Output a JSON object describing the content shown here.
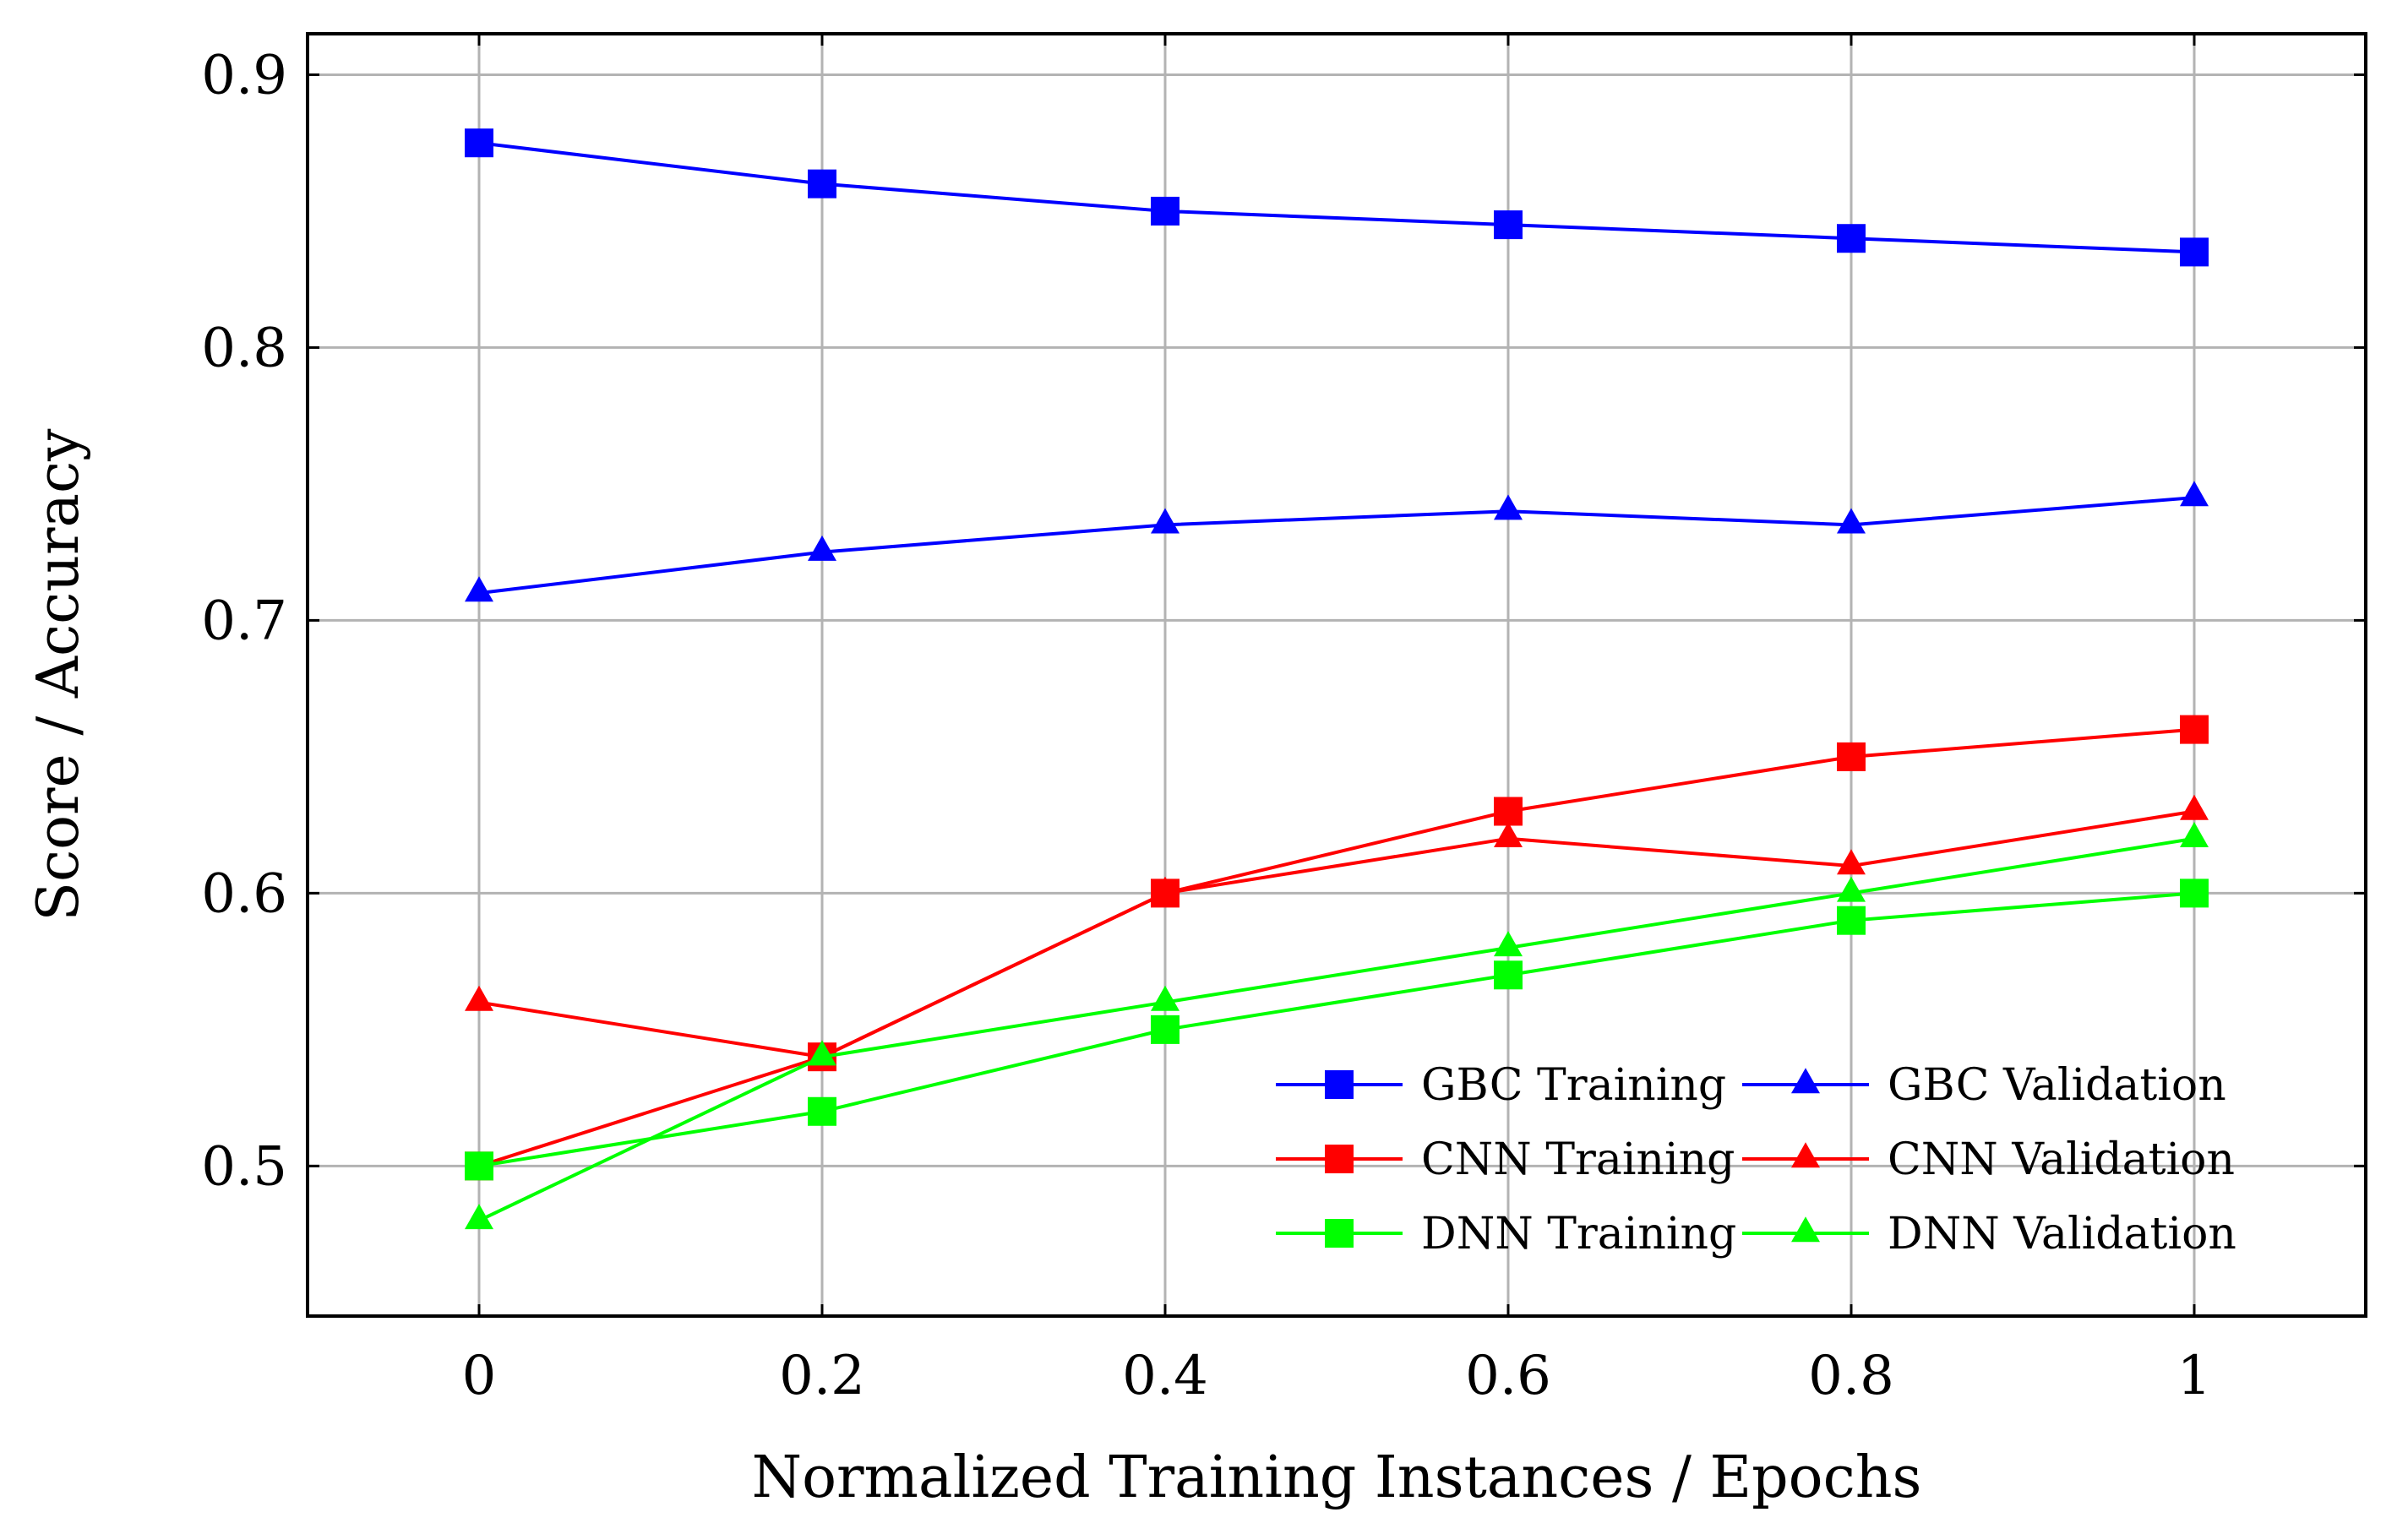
{
  "chart_data": {
    "type": "line",
    "title": "",
    "xlabel": "Normalized Training Instances / Epochs",
    "ylabel": "Score / Accuracy",
    "xlim": [
      -0.1,
      1.1
    ],
    "ylim": [
      0.445,
      0.915
    ],
    "grid": true,
    "x_ticks": [
      0,
      0.2,
      0.4,
      0.6,
      0.8,
      1
    ],
    "x_tick_labels": [
      "0",
      "0.2",
      "0.4",
      "0.6",
      "0.8",
      "1"
    ],
    "y_ticks": [
      0.5,
      0.6,
      0.7,
      0.8,
      0.9
    ],
    "y_tick_labels": [
      "0.5",
      "0.6",
      "0.7",
      "0.8",
      "0.9"
    ],
    "legend_position": "bottom-right",
    "x": [
      0,
      0.2,
      0.4,
      0.6,
      0.8,
      1
    ],
    "series": [
      {
        "name": "GBC Training",
        "color": "#0000ff",
        "marker": "square",
        "values": [
          0.875,
          0.86,
          0.85,
          0.845,
          0.84,
          0.835
        ]
      },
      {
        "name": "GBC Validation",
        "color": "#0000ff",
        "marker": "triangle",
        "values": [
          0.71,
          0.725,
          0.735,
          0.74,
          0.735,
          0.745
        ]
      },
      {
        "name": "CNN Training",
        "color": "#ff0000",
        "marker": "square",
        "values": [
          0.5,
          0.54,
          0.6,
          0.63,
          0.65,
          0.66
        ]
      },
      {
        "name": "CNN Validation",
        "color": "#ff0000",
        "marker": "triangle",
        "values": [
          0.56,
          0.54,
          0.6,
          0.62,
          0.61,
          0.63
        ]
      },
      {
        "name": "DNN Training",
        "color": "#00ff00",
        "marker": "square",
        "values": [
          0.5,
          0.52,
          0.55,
          0.57,
          0.59,
          0.6
        ]
      },
      {
        "name": "DNN Validation",
        "color": "#00ff00",
        "marker": "triangle",
        "values": [
          0.48,
          0.54,
          0.56,
          0.58,
          0.6,
          0.62
        ]
      }
    ]
  }
}
